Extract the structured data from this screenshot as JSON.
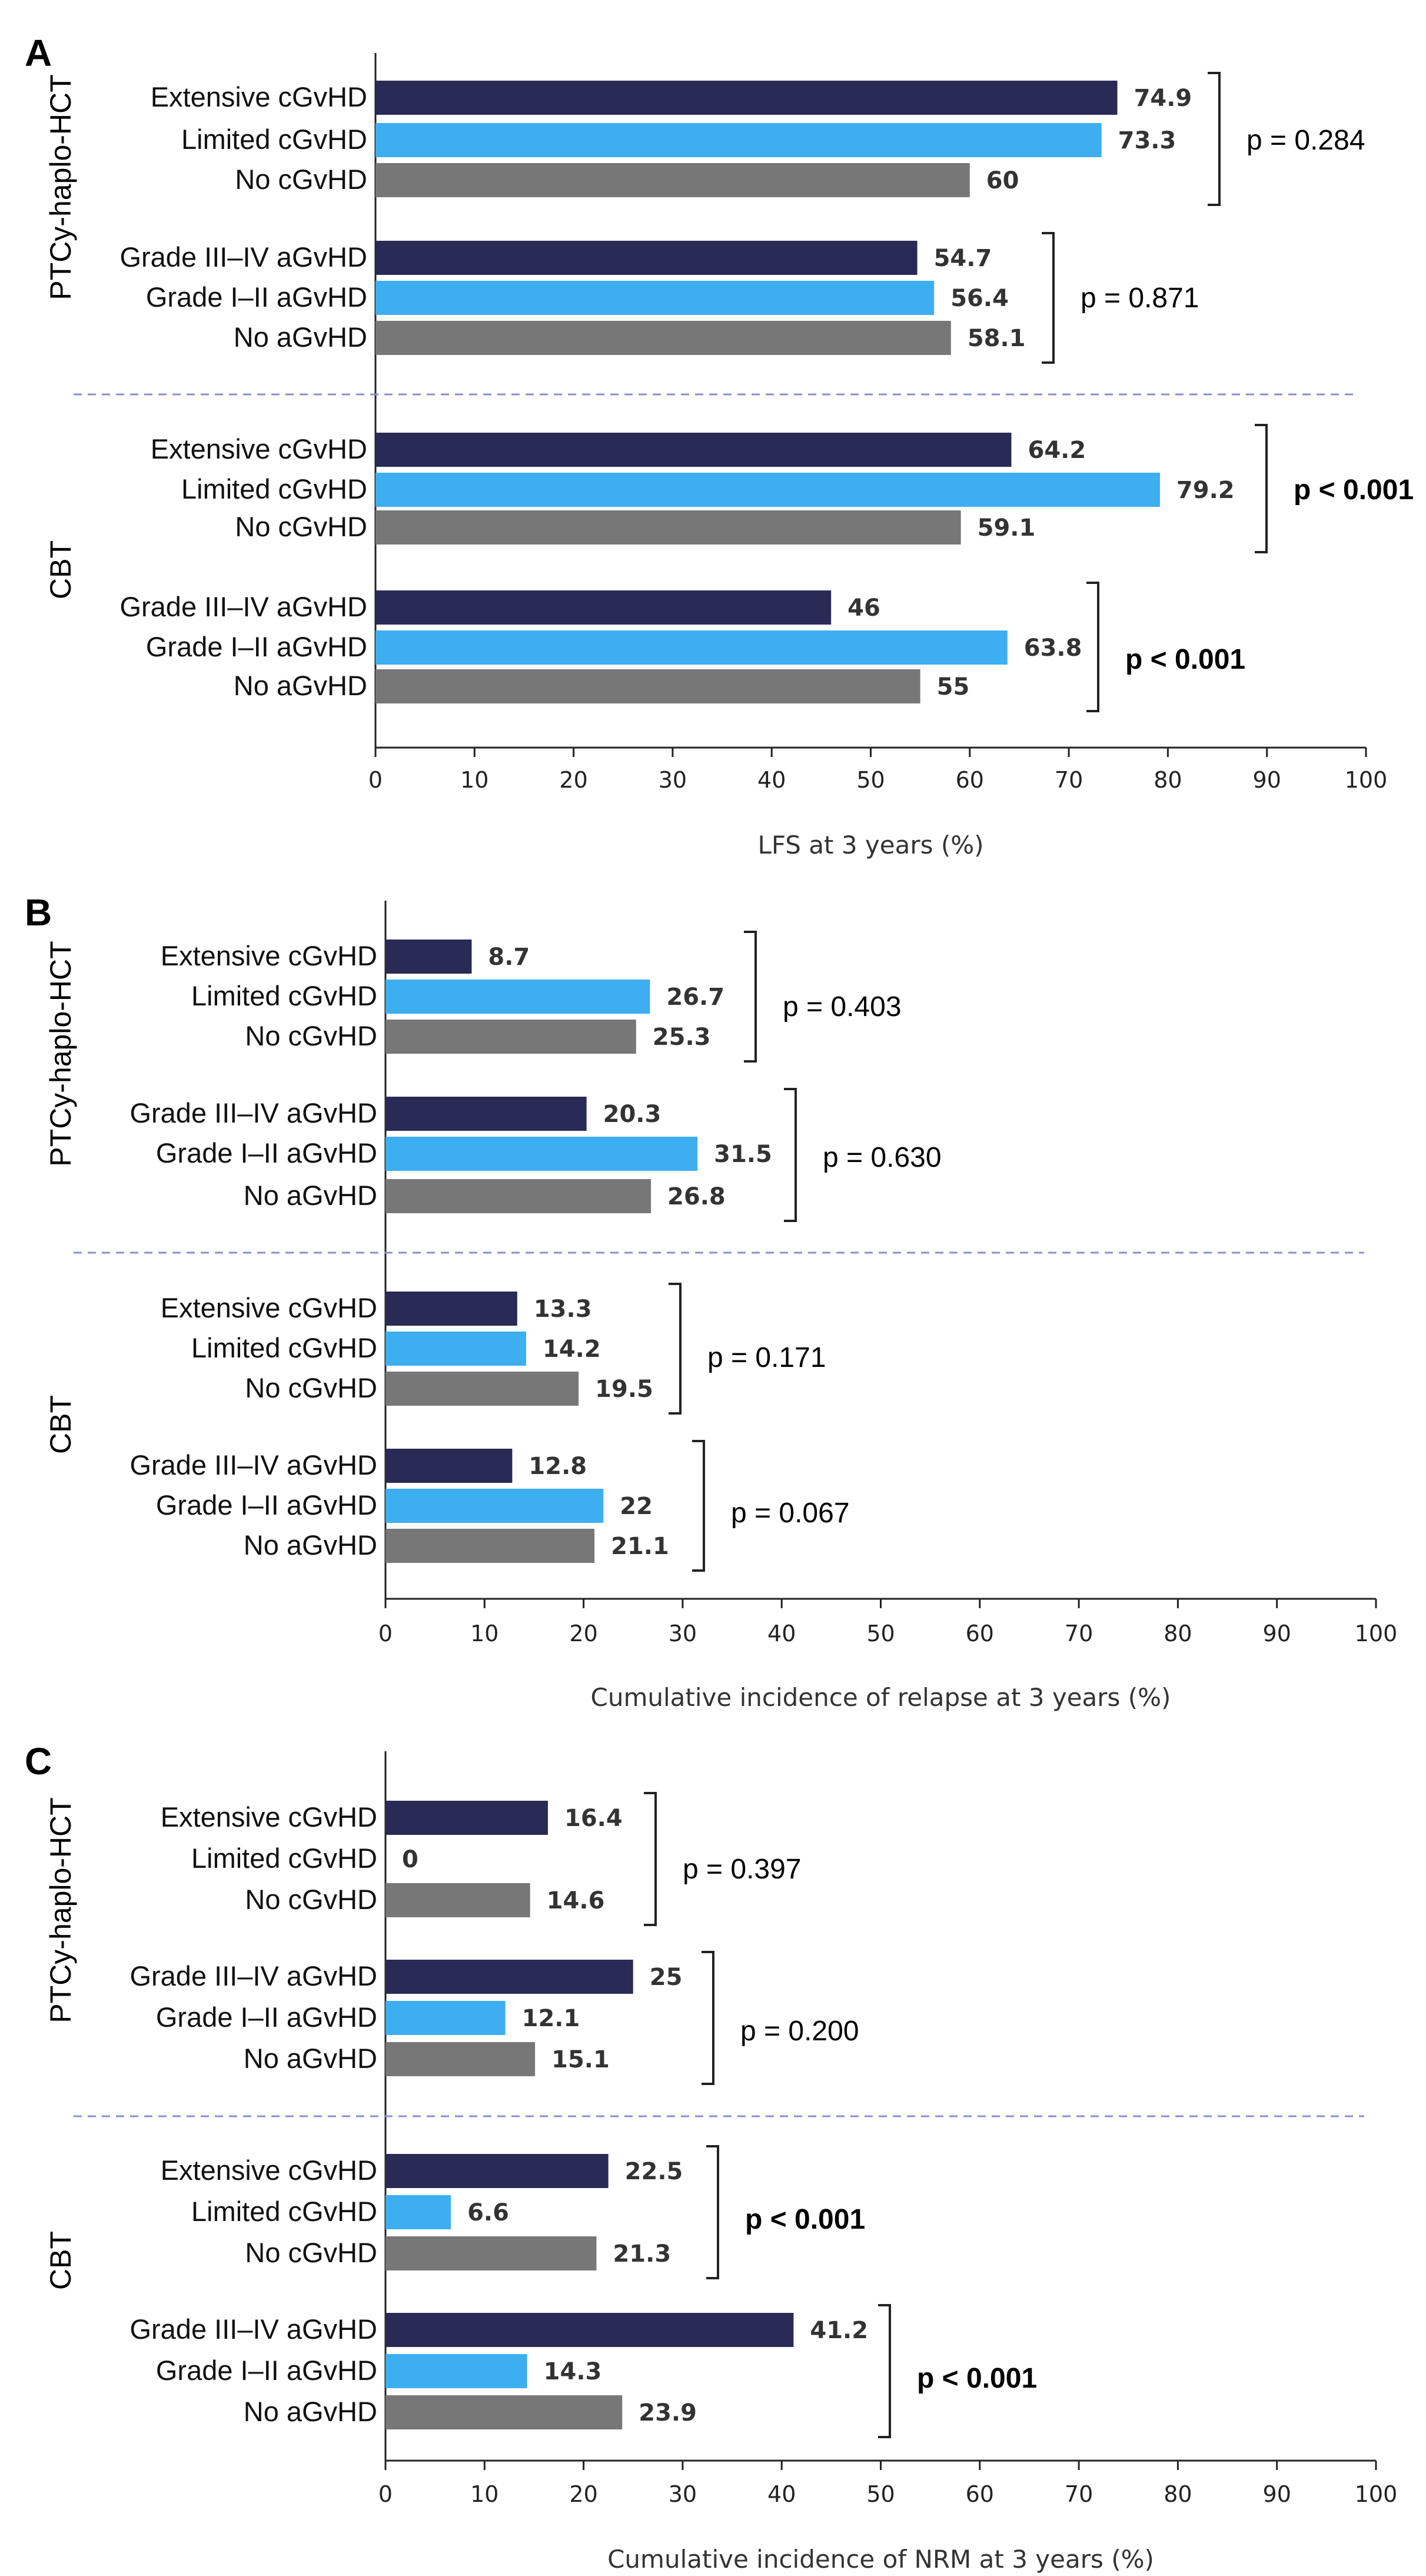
{
  "colors": {
    "extensive": "#2a2a57",
    "limited": "#3daef0",
    "none": "#777777",
    "separator": "#8a8ed0"
  },
  "chart_data": [
    {
      "panel": "A",
      "type": "bar",
      "orientation": "horizontal",
      "xlabel": "LFS at 3 years (%)",
      "xlim": [
        0,
        100
      ],
      "xticks": [
        0,
        10,
        20,
        30,
        40,
        50,
        60,
        70,
        80,
        90,
        100
      ],
      "groups": [
        {
          "name": "PTCy-haplo-HCT",
          "subgroups": [
            {
              "categories": [
                "Extensive cGvHD",
                "Limited cGvHD",
                "No cGvHD"
              ],
              "values": [
                74.9,
                73.3,
                60
              ],
              "value_labels": [
                "74.9",
                "73.3",
                "60"
              ],
              "p_value": "p = 0.284",
              "p_bold": false
            },
            {
              "categories": [
                "Grade III–IV aGvHD",
                "Grade I–II aGvHD",
                "No aGvHD"
              ],
              "values": [
                54.7,
                56.4,
                58.1
              ],
              "value_labels": [
                "54.7",
                "56.4",
                "58.1"
              ],
              "p_value": "p = 0.871",
              "p_bold": false
            }
          ]
        },
        {
          "name": "CBT",
          "subgroups": [
            {
              "categories": [
                "Extensive cGvHD",
                "Limited cGvHD",
                "No cGvHD"
              ],
              "values": [
                64.2,
                79.2,
                59.1
              ],
              "value_labels": [
                "64.2",
                "79.2",
                "59.1"
              ],
              "p_value": "p < 0.001",
              "p_bold": true
            },
            {
              "categories": [
                "Grade III–IV aGvHD",
                "Grade I–II aGvHD",
                "No aGvHD"
              ],
              "values": [
                46,
                63.8,
                55
              ],
              "value_labels": [
                "46",
                "63.8",
                "55"
              ],
              "p_value": "p < 0.001",
              "p_bold": true
            }
          ]
        }
      ]
    },
    {
      "panel": "B",
      "type": "bar",
      "orientation": "horizontal",
      "xlabel": "Cumulative incidence of relapse at 3 years (%)",
      "xlim": [
        0,
        100
      ],
      "xticks": [
        0,
        10,
        20,
        30,
        40,
        50,
        60,
        70,
        80,
        90,
        100
      ],
      "groups": [
        {
          "name": "PTCy-haplo-HCT",
          "subgroups": [
            {
              "categories": [
                "Extensive cGvHD",
                "Limited cGvHD",
                "No cGvHD"
              ],
              "values": [
                8.7,
                26.7,
                25.3
              ],
              "value_labels": [
                "8.7",
                "26.7",
                "25.3"
              ],
              "p_value": "p = 0.403",
              "p_bold": false
            },
            {
              "categories": [
                "Grade III–IV aGvHD",
                "Grade I–II aGvHD",
                "No aGvHD"
              ],
              "values": [
                20.3,
                31.5,
                26.8
              ],
              "value_labels": [
                "20.3",
                "31.5",
                "26.8"
              ],
              "p_value": "p = 0.630",
              "p_bold": false
            }
          ]
        },
        {
          "name": "CBT",
          "subgroups": [
            {
              "categories": [
                "Extensive cGvHD",
                "Limited cGvHD",
                "No cGvHD"
              ],
              "values": [
                13.3,
                14.2,
                19.5
              ],
              "value_labels": [
                "13.3",
                "14.2",
                "19.5"
              ],
              "p_value": "p = 0.171",
              "p_bold": false
            },
            {
              "categories": [
                "Grade III–IV aGvHD",
                "Grade I–II aGvHD",
                "No aGvHD"
              ],
              "values": [
                12.8,
                22,
                21.1
              ],
              "value_labels": [
                "12.8",
                "22",
                "21.1"
              ],
              "p_value": "p = 0.067",
              "p_bold": false
            }
          ]
        }
      ]
    },
    {
      "panel": "C",
      "type": "bar",
      "orientation": "horizontal",
      "xlabel": "Cumulative incidence of NRM at 3 years (%)",
      "xlim": [
        0,
        100
      ],
      "xticks": [
        0,
        10,
        20,
        30,
        40,
        50,
        60,
        70,
        80,
        90,
        100
      ],
      "groups": [
        {
          "name": "PTCy-haplo-HCT",
          "subgroups": [
            {
              "categories": [
                "Extensive cGvHD",
                "Limited cGvHD",
                "No cGvHD"
              ],
              "values": [
                16.4,
                0,
                14.6
              ],
              "value_labels": [
                "16.4",
                "0",
                "14.6"
              ],
              "p_value": "p = 0.397",
              "p_bold": false
            },
            {
              "categories": [
                "Grade III–IV aGvHD",
                "Grade I–II aGvHD",
                "No aGvHD"
              ],
              "values": [
                25,
                12.1,
                15.1
              ],
              "value_labels": [
                "25",
                "12.1",
                "15.1"
              ],
              "p_value": "p = 0.200",
              "p_bold": false
            }
          ]
        },
        {
          "name": "CBT",
          "subgroups": [
            {
              "categories": [
                "Extensive cGvHD",
                "Limited cGvHD",
                "No cGvHD"
              ],
              "values": [
                22.5,
                6.6,
                21.3
              ],
              "value_labels": [
                "22.5",
                "6.6",
                "21.3"
              ],
              "p_value": "p < 0.001",
              "p_bold": true
            },
            {
              "categories": [
                "Grade III–IV aGvHD",
                "Grade I–II aGvHD",
                "No aGvHD"
              ],
              "values": [
                41.2,
                14.3,
                23.9
              ],
              "value_labels": [
                "41.2",
                "14.3",
                "23.9"
              ],
              "p_value": "p < 0.001",
              "p_bold": true
            }
          ]
        }
      ]
    }
  ]
}
